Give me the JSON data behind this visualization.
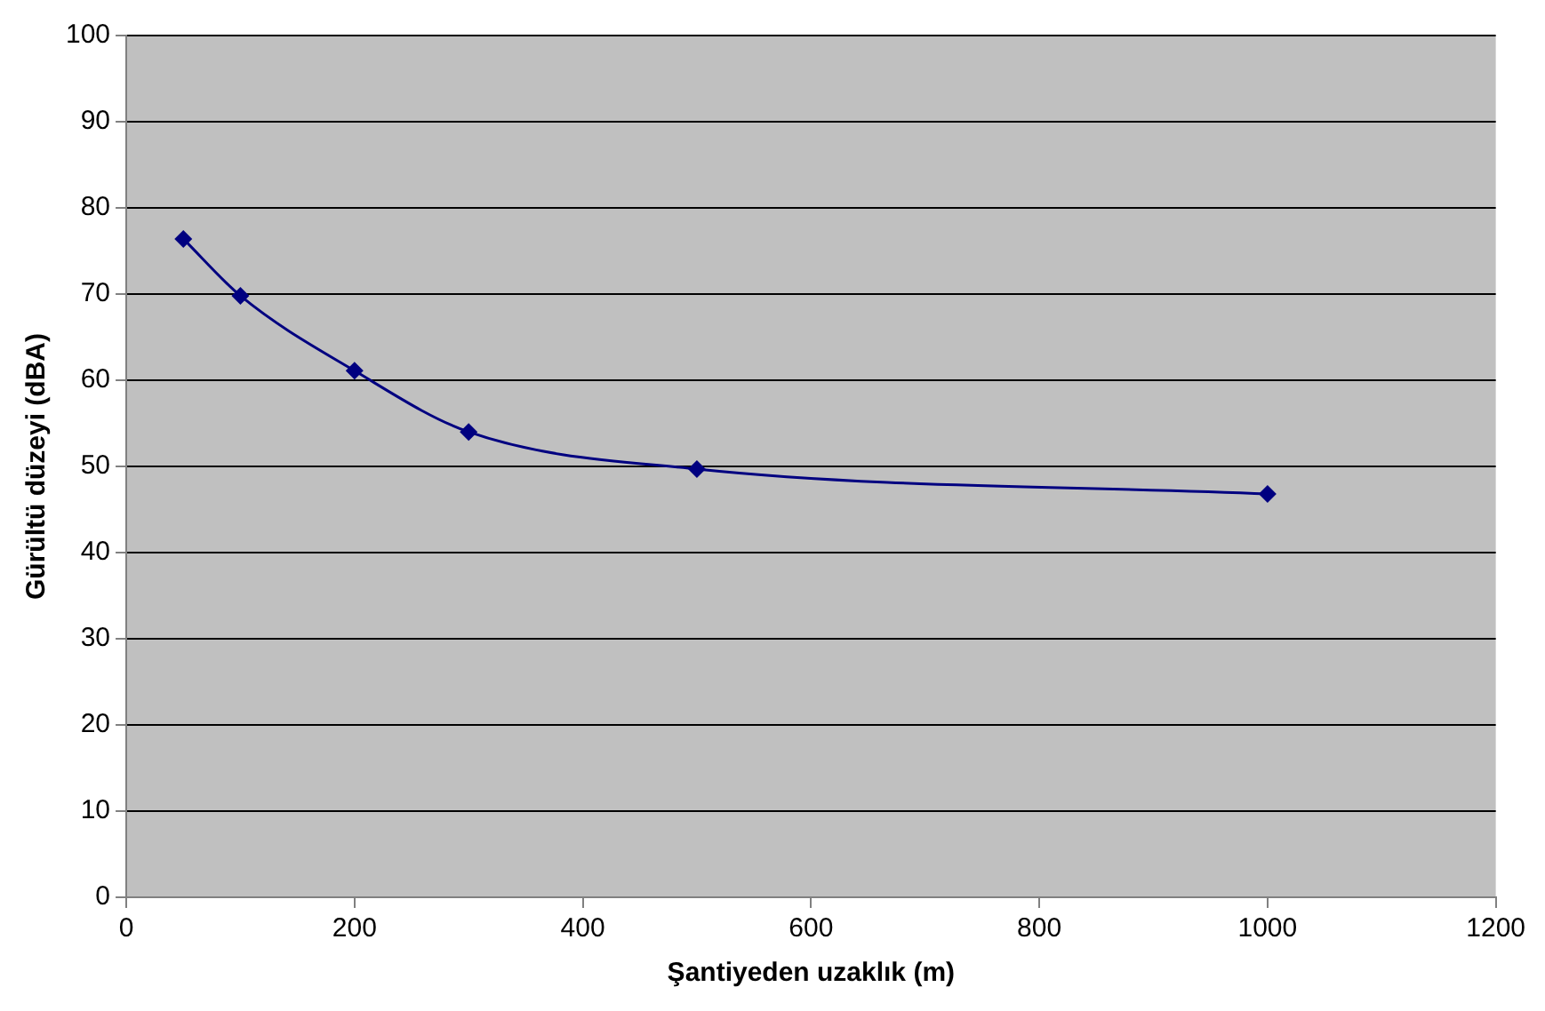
{
  "chart_data": {
    "type": "line",
    "xlabel": "Şantiyeden uzaklık (m)",
    "ylabel": "Gürültü düzeyi (dBA)",
    "x": [
      50,
      100,
      200,
      300,
      500,
      1000
    ],
    "series": [
      {
        "color": "#000080",
        "values": [
          76.4,
          69.8,
          61.1,
          54,
          49.7,
          46.8
        ]
      }
    ],
    "xlim": [
      0,
      1200
    ],
    "xticks": [
      0,
      200,
      400,
      600,
      800,
      1000,
      1200
    ],
    "ylim": [
      0,
      100
    ],
    "yticks": [
      0,
      10,
      20,
      30,
      40,
      50,
      60,
      70,
      80,
      90,
      100
    ],
    "grid": "y",
    "legend": false,
    "marker": "diamond",
    "line_style": "solid"
  }
}
